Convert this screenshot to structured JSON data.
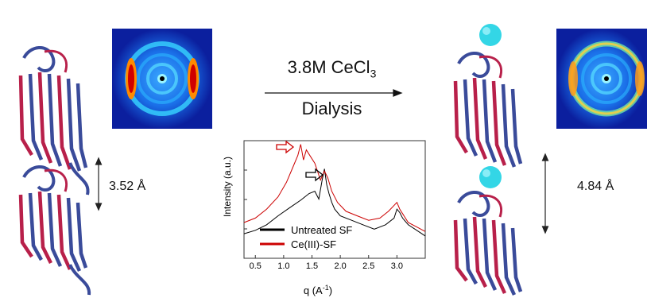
{
  "reaction": {
    "reagent_prefix": "3.8M CeCl",
    "reagent_subscript": "3",
    "method": "Dialysis"
  },
  "left_panel": {
    "spacing_label": "3.52 Å"
  },
  "right_panel": {
    "spacing_label": "4.84 Å"
  },
  "chart_data": {
    "type": "line",
    "xlabel": "q (Å⁻¹)",
    "xlabel_prefix": "q (A",
    "xlabel_sup": "-1",
    "xlabel_suffix": ")",
    "ylabel": "Intensity (a.u.)",
    "xlim": [
      0.3,
      3.5
    ],
    "xticks": [
      "0.5",
      "1.0",
      "1.5",
      "2.0",
      "2.5",
      "3.0"
    ],
    "legend_position": "bottom-left",
    "series": [
      {
        "name": "Untreated SF",
        "color": "#000000",
        "x": [
          0.3,
          0.5,
          0.7,
          0.9,
          1.1,
          1.3,
          1.45,
          1.55,
          1.62,
          1.68,
          1.72,
          1.76,
          1.8,
          1.85,
          1.9,
          2.0,
          2.2,
          2.4,
          2.6,
          2.8,
          2.95,
          3.0,
          3.05,
          3.1,
          3.2,
          3.35,
          3.5
        ],
        "y": [
          0.22,
          0.25,
          0.3,
          0.38,
          0.45,
          0.52,
          0.58,
          0.6,
          0.53,
          0.7,
          0.8,
          0.66,
          0.58,
          0.5,
          0.44,
          0.38,
          0.34,
          0.3,
          0.26,
          0.3,
          0.36,
          0.44,
          0.41,
          0.36,
          0.3,
          0.25,
          0.2
        ]
      },
      {
        "name": "Ce(III)-SF",
        "color": "#cc0000",
        "x": [
          0.3,
          0.5,
          0.7,
          0.9,
          1.05,
          1.15,
          1.25,
          1.3,
          1.35,
          1.4,
          1.45,
          1.55,
          1.65,
          1.72,
          1.78,
          1.85,
          1.95,
          2.1,
          2.3,
          2.5,
          2.7,
          2.85,
          3.0,
          3.05,
          3.1,
          3.2,
          3.35,
          3.5
        ],
        "y": [
          0.32,
          0.36,
          0.44,
          0.55,
          0.68,
          0.8,
          0.92,
          1.02,
          0.88,
          0.97,
          0.93,
          0.85,
          0.7,
          0.78,
          0.72,
          0.6,
          0.5,
          0.42,
          0.38,
          0.34,
          0.36,
          0.42,
          0.5,
          0.44,
          0.4,
          0.32,
          0.28,
          0.24
        ]
      }
    ]
  }
}
